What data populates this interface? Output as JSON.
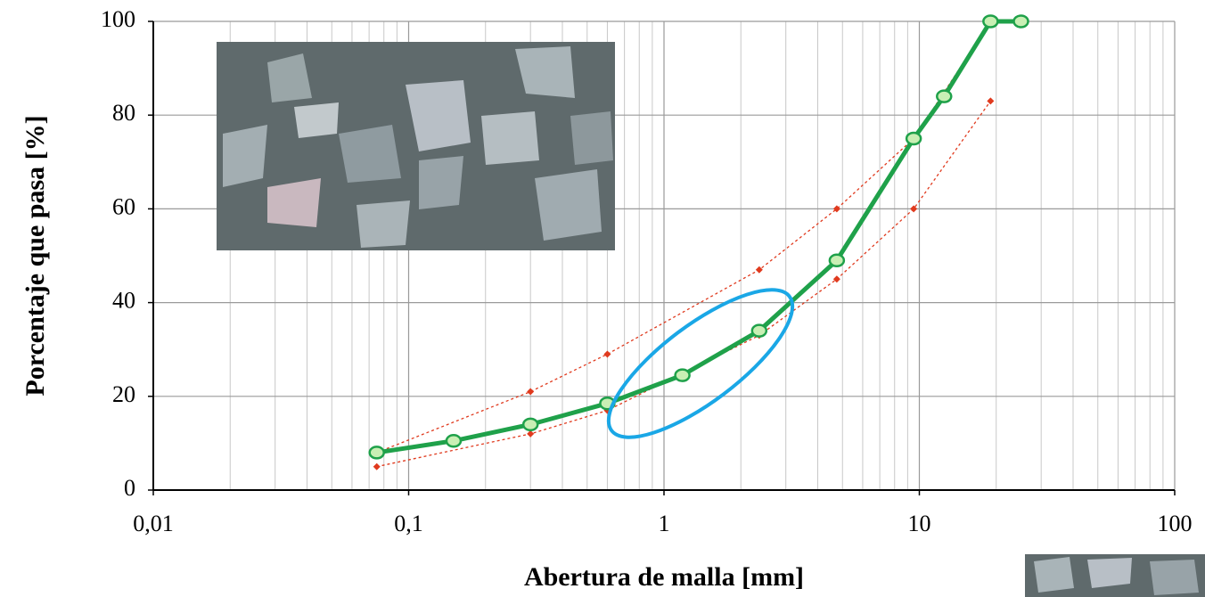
{
  "chart_data": {
    "type": "line",
    "x_label": "Abertura de malla [mm]",
    "y_label": "Porcentaje que  pasa  [%]",
    "xscale": "log",
    "xlim": [
      0.01,
      100
    ],
    "xticks": [
      {
        "value": 0.01,
        "label": "0,01"
      },
      {
        "value": 0.1,
        "label": "0,1"
      },
      1,
      10,
      100
    ],
    "x_minor_ticks": [
      0.02,
      0.03,
      0.04,
      0.05,
      0.06,
      0.07,
      0.08,
      0.09,
      0.2,
      0.3,
      0.4,
      0.5,
      0.6,
      0.7,
      0.8,
      0.9,
      2,
      3,
      4,
      5,
      6,
      7,
      8,
      9,
      20,
      30,
      40,
      50,
      60,
      70,
      80,
      90
    ],
    "ylim": [
      0,
      100
    ],
    "yticks": [
      0,
      20,
      40,
      60,
      80,
      100
    ],
    "grid": true,
    "series": [
      {
        "color": "#e03a1e",
        "style": "dashed",
        "x": [
          0.075,
          0.3,
          0.6,
          2.36,
          4.75,
          9.5,
          19
        ],
        "values": [
          8,
          21,
          29,
          47,
          60,
          75,
          100
        ]
      },
      {
        "color": "#e03a1e",
        "style": "dashed",
        "x": [
          0.075,
          0.3,
          0.6,
          2.36,
          4.75,
          9.5,
          19
        ],
        "values": [
          5,
          12,
          17,
          33,
          45,
          60,
          83
        ]
      },
      {
        "color": "#1fa14a",
        "style": "solid",
        "x": [
          0.075,
          0.15,
          0.3,
          0.6,
          1.18,
          2.36,
          4.75,
          9.5,
          12.5,
          19,
          25
        ],
        "values": [
          8,
          10.5,
          14,
          18.5,
          24.5,
          34,
          49,
          75,
          84,
          100,
          100
        ]
      }
    ]
  }
}
